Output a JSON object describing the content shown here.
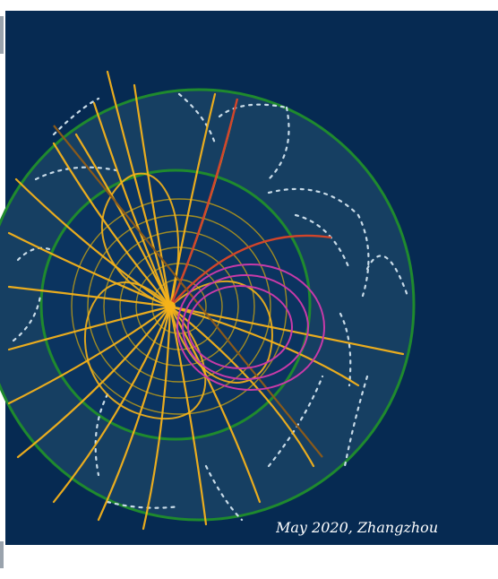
{
  "artwork": {
    "background_color": "#062a52",
    "outer_ring_color": "#1f8a2e",
    "outer_fill": "#163f62",
    "inner_ring_color": "#1f8a2e",
    "inner_fill": "#0b3460",
    "concentric_ring_color": "#b89a1a",
    "track_color_main": "#f5b21a",
    "track_color_magenta": "#c83aa8",
    "track_color_red": "#d2452a",
    "track_color_brown": "#8a5a1a",
    "hit_color": "#c8dbe8"
  },
  "signature": {
    "text": "May 2020, Zhangzhou",
    "color": "#ffffff"
  }
}
